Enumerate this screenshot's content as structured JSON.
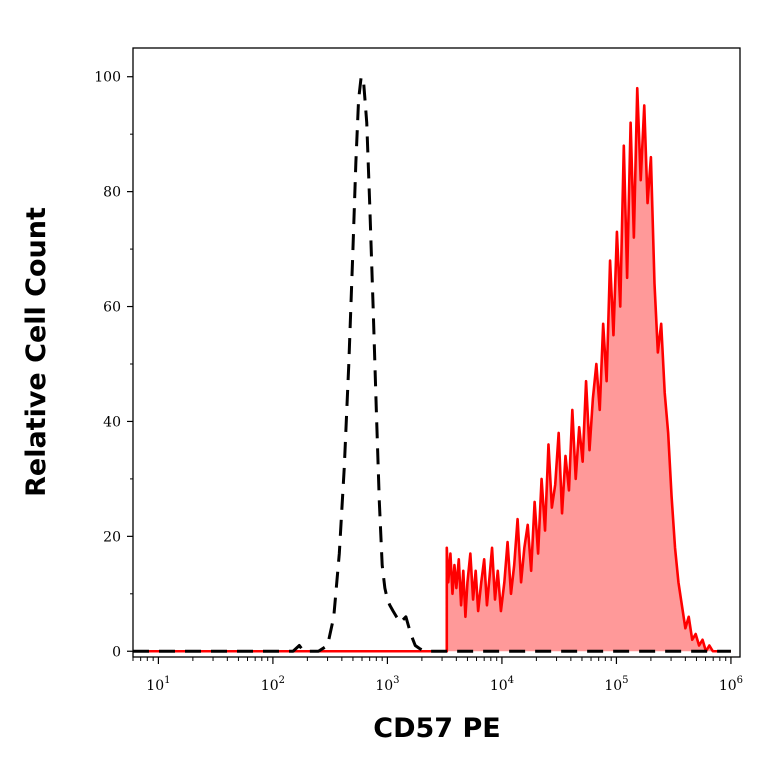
{
  "chart_data": {
    "type": "area",
    "xlabel": "CD57 PE",
    "ylabel": "Relative Cell Count",
    "xscale": "log",
    "xlim": [
      6,
      1200000
    ],
    "ylim": [
      -1,
      105
    ],
    "y_ticks": [
      {
        "value": 0,
        "label": "0"
      },
      {
        "value": 20,
        "label": "20"
      },
      {
        "value": 40,
        "label": "40"
      },
      {
        "value": 60,
        "label": "60"
      },
      {
        "value": 80,
        "label": "80"
      },
      {
        "value": 100,
        "label": "100"
      }
    ],
    "x_ticks": [
      {
        "value": 10,
        "base": "10",
        "exp": "1"
      },
      {
        "value": 100,
        "base": "10",
        "exp": "2"
      },
      {
        "value": 1000,
        "base": "10",
        "exp": "3"
      },
      {
        "value": 10000,
        "base": "10",
        "exp": "4"
      },
      {
        "value": 100000,
        "base": "10",
        "exp": "5"
      },
      {
        "value": 1000000,
        "base": "10",
        "exp": "6"
      }
    ],
    "grid": false,
    "colors": {
      "stained_line": "#ff0000",
      "stained_fill": "#ff9999",
      "control_line": "#000000"
    },
    "series": [
      {
        "style": "dashed-black",
        "x": [
          6,
          150,
          170,
          185,
          200,
          250,
          300,
          340,
          380,
          420,
          460,
          500,
          530,
          560,
          590,
          620,
          660,
          700,
          750,
          800,
          850,
          900,
          950,
          1000,
          1050,
          1120,
          1200,
          1300,
          1450,
          1600,
          1750,
          1900,
          2100,
          2400,
          3000,
          5000,
          20000,
          100000,
          500000,
          1000000
        ],
        "y": [
          0,
          0,
          1,
          0,
          0,
          0,
          1,
          6,
          17,
          32,
          50,
          70,
          85,
          96,
          100,
          99,
          92,
          78,
          60,
          42,
          26,
          15,
          11,
          9,
          8,
          7,
          6,
          5,
          6,
          3,
          1,
          0.5,
          0,
          0,
          0,
          0,
          0,
          0,
          0,
          0
        ]
      },
      {
        "style": "filled-red",
        "x": [
          6,
          3300,
          3300,
          3400,
          3550,
          3700,
          3850,
          4000,
          4200,
          4400,
          4600,
          4800,
          5000,
          5300,
          5600,
          5900,
          6200,
          6600,
          7000,
          7400,
          7800,
          8200,
          8700,
          9200,
          9800,
          10500,
          11200,
          12000,
          12800,
          13700,
          14700,
          15700,
          16800,
          18000,
          19300,
          20700,
          22200,
          23800,
          25500,
          27300,
          29200,
          31300,
          33500,
          35900,
          38500,
          41200,
          44100,
          47300,
          50700,
          54300,
          58200,
          62300,
          66800,
          71500,
          76600,
          82100,
          88000,
          94200,
          101000,
          108000,
          116000,
          124000,
          133000,
          142000,
          152000,
          163000,
          175000,
          187000,
          200000,
          215000,
          230000,
          246000,
          264000,
          283000,
          303000,
          325000,
          348000,
          373000,
          400000,
          428000,
          459000,
          492000,
          527000,
          565000,
          605000,
          648000,
          695000,
          745000,
          800000,
          1000000
        ],
        "y": [
          0,
          0,
          18,
          12,
          17,
          10,
          15,
          11,
          16,
          8,
          14,
          6,
          12,
          17,
          9,
          14,
          7,
          12,
          16,
          8,
          13,
          18,
          9,
          14,
          7,
          12,
          19,
          10,
          15,
          23,
          12,
          18,
          22,
          14,
          26,
          17,
          30,
          21,
          36,
          25,
          29,
          38,
          24,
          34,
          28,
          42,
          30,
          39,
          33,
          47,
          35,
          44,
          50,
          42,
          57,
          47,
          68,
          55,
          73,
          60,
          88,
          65,
          92,
          72,
          98,
          82,
          95,
          78,
          86,
          64,
          52,
          57,
          45,
          38,
          27,
          18,
          12,
          8,
          4,
          6,
          2,
          3,
          1,
          2,
          0,
          1,
          0,
          0,
          0,
          0
        ]
      }
    ]
  }
}
